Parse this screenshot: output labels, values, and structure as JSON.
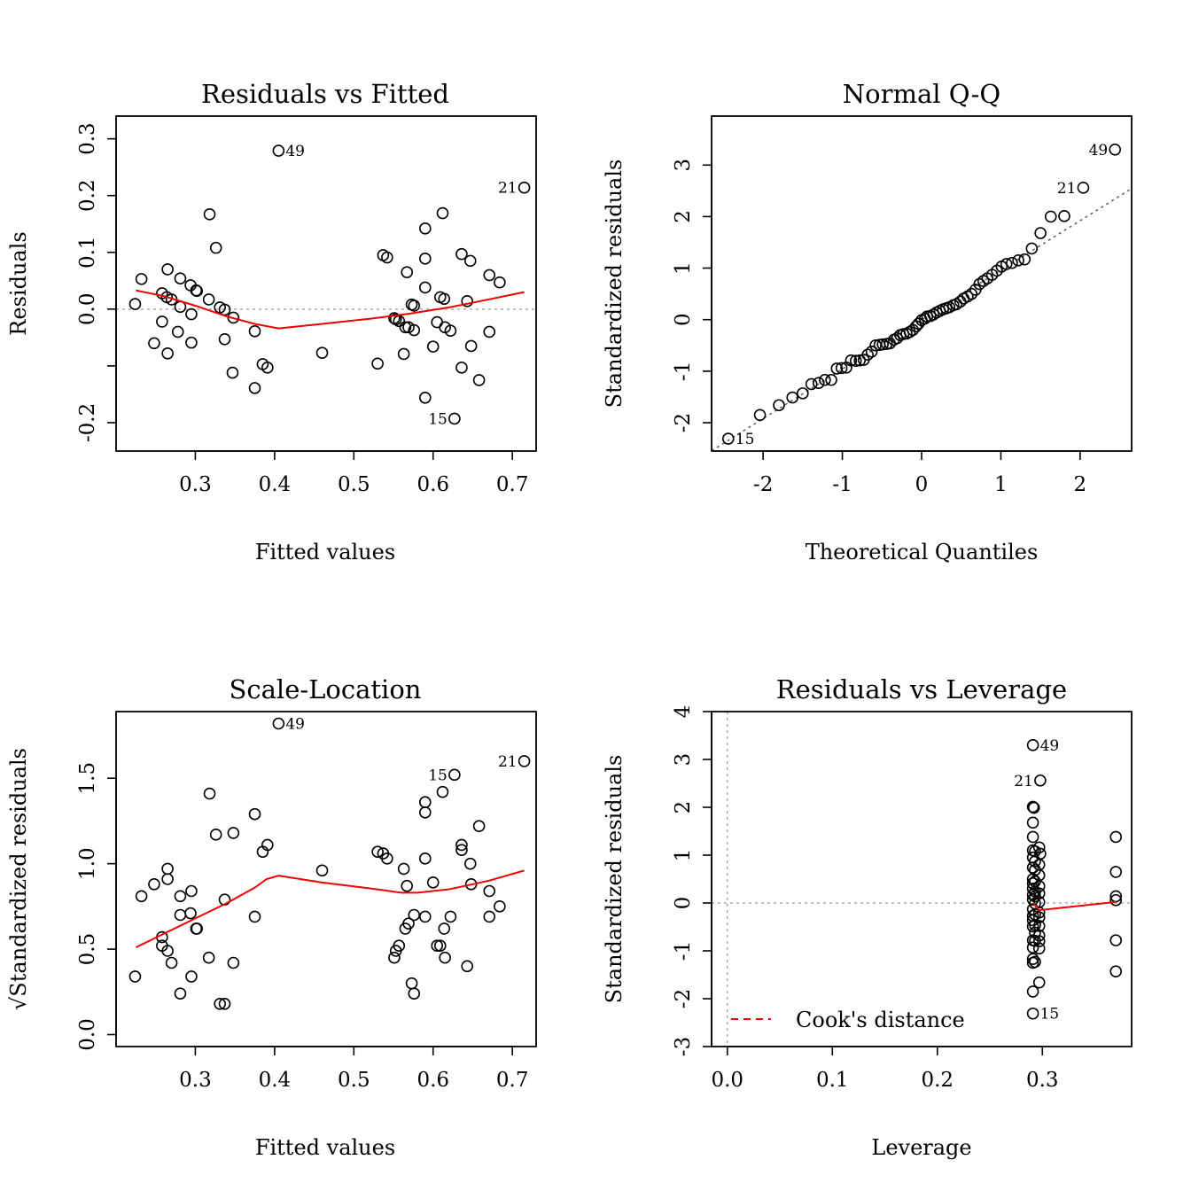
{
  "chart_data": [
    {
      "type": "scatter",
      "title": "Residuals vs Fitted",
      "xlabel": "Fitted values",
      "ylabel": "Residuals",
      "xlim": [
        0.2,
        0.73
      ],
      "ylim": [
        -0.25,
        0.34
      ],
      "xticks": [
        "0.3",
        "0.4",
        "0.5",
        "0.6",
        "0.7"
      ],
      "yticks": [
        "-0.2",
        "",
        "0.0",
        "0.1",
        "0.2",
        "0.3"
      ],
      "reference_line": {
        "y": 0,
        "color": "#aaaaaa",
        "style": "dotted"
      },
      "smoother_color": "#ee0000",
      "points": [
        [
          0.405,
          0.279
        ],
        [
          0.715,
          0.214
        ],
        [
          0.318,
          0.167
        ],
        [
          0.612,
          0.169
        ],
        [
          0.59,
          0.142
        ],
        [
          0.326,
          0.108
        ],
        [
          0.537,
          0.095
        ],
        [
          0.542,
          0.091
        ],
        [
          0.636,
          0.097
        ],
        [
          0.647,
          0.085
        ],
        [
          0.59,
          0.089
        ],
        [
          0.265,
          0.07
        ],
        [
          0.567,
          0.065
        ],
        [
          0.671,
          0.06
        ],
        [
          0.684,
          0.047
        ],
        [
          0.232,
          0.053
        ],
        [
          0.281,
          0.054
        ],
        [
          0.294,
          0.042
        ],
        [
          0.301,
          0.033
        ],
        [
          0.302,
          0.032
        ],
        [
          0.59,
          0.038
        ],
        [
          0.258,
          0.028
        ],
        [
          0.264,
          0.021
        ],
        [
          0.27,
          0.017
        ],
        [
          0.317,
          0.017
        ],
        [
          0.609,
          0.021
        ],
        [
          0.614,
          0.018
        ],
        [
          0.643,
          0.014
        ],
        [
          0.224,
          0.009
        ],
        [
          0.281,
          0.004
        ],
        [
          0.331,
          0.003
        ],
        [
          0.337,
          -0.001
        ],
        [
          0.573,
          0.008
        ],
        [
          0.576,
          0.006
        ],
        [
          0.295,
          -0.009
        ],
        [
          0.348,
          -0.015
        ],
        [
          0.551,
          -0.016
        ],
        [
          0.553,
          -0.018
        ],
        [
          0.557,
          -0.021
        ],
        [
          0.258,
          -0.022
        ],
        [
          0.605,
          -0.023
        ],
        [
          0.565,
          -0.032
        ],
        [
          0.569,
          -0.032
        ],
        [
          0.576,
          -0.037
        ],
        [
          0.615,
          -0.032
        ],
        [
          0.622,
          -0.038
        ],
        [
          0.278,
          -0.04
        ],
        [
          0.375,
          -0.039
        ],
        [
          0.671,
          -0.04
        ],
        [
          0.248,
          -0.06
        ],
        [
          0.295,
          -0.059
        ],
        [
          0.337,
          -0.053
        ],
        [
          0.6,
          -0.066
        ],
        [
          0.648,
          -0.065
        ],
        [
          0.265,
          -0.078
        ],
        [
          0.46,
          -0.077
        ],
        [
          0.563,
          -0.079
        ],
        [
          0.385,
          -0.097
        ],
        [
          0.391,
          -0.103
        ],
        [
          0.53,
          -0.096
        ],
        [
          0.636,
          -0.103
        ],
        [
          0.347,
          -0.112
        ],
        [
          0.658,
          -0.125
        ],
        [
          0.375,
          -0.139
        ],
        [
          0.59,
          -0.156
        ],
        [
          0.627,
          -0.193
        ]
      ],
      "smoother": [
        [
          0.225,
          0.033
        ],
        [
          0.26,
          0.023
        ],
        [
          0.3,
          0.006
        ],
        [
          0.34,
          -0.013
        ],
        [
          0.375,
          -0.026
        ],
        [
          0.405,
          -0.034
        ],
        [
          0.46,
          -0.026
        ],
        [
          0.52,
          -0.017
        ],
        [
          0.57,
          -0.008
        ],
        [
          0.62,
          0.003
        ],
        [
          0.67,
          0.017
        ],
        [
          0.715,
          0.03
        ]
      ],
      "labeled": [
        {
          "text": "49",
          "x": 0.405,
          "y": 0.279,
          "side": "right"
        },
        {
          "text": "21",
          "x": 0.715,
          "y": 0.214,
          "side": "left"
        },
        {
          "text": "15",
          "x": 0.627,
          "y": -0.193,
          "side": "left"
        }
      ]
    },
    {
      "type": "scatter",
      "title": "Normal Q-Q",
      "xlabel": "Theoretical Quantiles",
      "ylabel": "Standardized residuals",
      "xlim": [
        -2.65,
        2.65
      ],
      "ylim": [
        -2.55,
        3.95
      ],
      "xticks": [
        "-2",
        "-1",
        "0",
        "1",
        "2"
      ],
      "yticks": [
        "-2",
        "-1",
        "0",
        "1",
        "2",
        "3"
      ],
      "qq_line": {
        "slope": 0.96,
        "intercept": 0.0,
        "color": "#666666",
        "style": "dotted"
      },
      "points": [
        [
          -2.44,
          -2.31
        ],
        [
          -2.04,
          -1.85
        ],
        [
          -1.8,
          -1.66
        ],
        [
          -1.63,
          -1.51
        ],
        [
          -1.5,
          -1.43
        ],
        [
          -1.39,
          -1.25
        ],
        [
          -1.3,
          -1.23
        ],
        [
          -1.22,
          -1.17
        ],
        [
          -1.14,
          -1.17
        ],
        [
          -1.07,
          -0.95
        ],
        [
          -1.01,
          -0.94
        ],
        [
          -0.95,
          -0.93
        ],
        [
          -0.89,
          -0.79
        ],
        [
          -0.83,
          -0.8
        ],
        [
          -0.78,
          -0.79
        ],
        [
          -0.73,
          -0.78
        ],
        [
          -0.68,
          -0.68
        ],
        [
          -0.63,
          -0.62
        ],
        [
          -0.58,
          -0.5
        ],
        [
          -0.53,
          -0.49
        ],
        [
          -0.49,
          -0.48
        ],
        [
          -0.44,
          -0.47
        ],
        [
          -0.4,
          -0.46
        ],
        [
          -0.35,
          -0.39
        ],
        [
          -0.31,
          -0.36
        ],
        [
          -0.27,
          -0.3
        ],
        [
          -0.23,
          -0.28
        ],
        [
          -0.19,
          -0.27
        ],
        [
          -0.15,
          -0.24
        ],
        [
          -0.11,
          -0.2
        ],
        [
          -0.07,
          -0.13
        ],
        [
          -0.04,
          -0.08
        ],
        [
          0.0,
          -0.01
        ],
        [
          0.04,
          0.02
        ],
        [
          0.07,
          0.06
        ],
        [
          0.11,
          0.07
        ],
        [
          0.15,
          0.1
        ],
        [
          0.19,
          0.14
        ],
        [
          0.23,
          0.17
        ],
        [
          0.27,
          0.2
        ],
        [
          0.31,
          0.22
        ],
        [
          0.35,
          0.24
        ],
        [
          0.4,
          0.28
        ],
        [
          0.44,
          0.3
        ],
        [
          0.49,
          0.35
        ],
        [
          0.53,
          0.41
        ],
        [
          0.58,
          0.45
        ],
        [
          0.63,
          0.5
        ],
        [
          0.68,
          0.58
        ],
        [
          0.73,
          0.69
        ],
        [
          0.78,
          0.75
        ],
        [
          0.83,
          0.8
        ],
        [
          0.89,
          0.87
        ],
        [
          0.95,
          0.95
        ],
        [
          1.01,
          1.03
        ],
        [
          1.07,
          1.08
        ],
        [
          1.14,
          1.1
        ],
        [
          1.22,
          1.15
        ],
        [
          1.3,
          1.17
        ],
        [
          1.39,
          1.38
        ],
        [
          1.5,
          1.68
        ],
        [
          1.63,
          2.0
        ],
        [
          1.8,
          2.01
        ],
        [
          2.04,
          2.56
        ],
        [
          2.44,
          3.3
        ]
      ],
      "labeled": [
        {
          "text": "49",
          "x": 2.44,
          "y": 3.3,
          "side": "left"
        },
        {
          "text": "21",
          "x": 2.04,
          "y": 2.56,
          "side": "left"
        },
        {
          "text": "15",
          "x": -2.44,
          "y": -2.31,
          "side": "right"
        }
      ]
    },
    {
      "type": "scatter",
      "title": "Scale-Location",
      "xlabel": "Fitted values",
      "ylabel": "Standardized residuals",
      "ylabel_prefix": "√",
      "xlim": [
        0.2,
        0.73
      ],
      "ylim": [
        -0.07,
        1.89
      ],
      "xticks": [
        "0.3",
        "0.4",
        "0.5",
        "0.6",
        "0.7"
      ],
      "yticks": [
        "0.0",
        "0.5",
        "1.0",
        "1.5"
      ],
      "smoother_color": "#ee0000",
      "points": [
        [
          0.405,
          1.82
        ],
        [
          0.715,
          1.6
        ],
        [
          0.627,
          1.52
        ],
        [
          0.612,
          1.42
        ],
        [
          0.318,
          1.41
        ],
        [
          0.59,
          1.36
        ],
        [
          0.59,
          1.3
        ],
        [
          0.375,
          1.29
        ],
        [
          0.658,
          1.22
        ],
        [
          0.326,
          1.17
        ],
        [
          0.348,
          1.18
        ],
        [
          0.391,
          1.11
        ],
        [
          0.636,
          1.11
        ],
        [
          0.385,
          1.07
        ],
        [
          0.53,
          1.07
        ],
        [
          0.537,
          1.06
        ],
        [
          0.542,
          1.03
        ],
        [
          0.59,
          1.03
        ],
        [
          0.636,
          1.08
        ],
        [
          0.647,
          1.0
        ],
        [
          0.265,
          0.97
        ],
        [
          0.46,
          0.96
        ],
        [
          0.563,
          0.97
        ],
        [
          0.265,
          0.91
        ],
        [
          0.248,
          0.88
        ],
        [
          0.6,
          0.89
        ],
        [
          0.648,
          0.88
        ],
        [
          0.567,
          0.87
        ],
        [
          0.295,
          0.84
        ],
        [
          0.671,
          0.84
        ],
        [
          0.232,
          0.81
        ],
        [
          0.281,
          0.81
        ],
        [
          0.337,
          0.79
        ],
        [
          0.684,
          0.75
        ],
        [
          0.281,
          0.7
        ],
        [
          0.294,
          0.71
        ],
        [
          0.375,
          0.69
        ],
        [
          0.576,
          0.7
        ],
        [
          0.59,
          0.69
        ],
        [
          0.622,
          0.69
        ],
        [
          0.671,
          0.69
        ],
        [
          0.301,
          0.62
        ],
        [
          0.302,
          0.62
        ],
        [
          0.569,
          0.65
        ],
        [
          0.565,
          0.62
        ],
        [
          0.614,
          0.62
        ],
        [
          0.258,
          0.57
        ],
        [
          0.258,
          0.52
        ],
        [
          0.265,
          0.49
        ],
        [
          0.557,
          0.52
        ],
        [
          0.553,
          0.49
        ],
        [
          0.551,
          0.45
        ],
        [
          0.605,
          0.52
        ],
        [
          0.609,
          0.52
        ],
        [
          0.615,
          0.45
        ],
        [
          0.317,
          0.45
        ],
        [
          0.348,
          0.42
        ],
        [
          0.27,
          0.42
        ],
        [
          0.643,
          0.4
        ],
        [
          0.224,
          0.34
        ],
        [
          0.295,
          0.34
        ],
        [
          0.573,
          0.3
        ],
        [
          0.576,
          0.24
        ],
        [
          0.281,
          0.24
        ],
        [
          0.331,
          0.18
        ],
        [
          0.337,
          0.18
        ]
      ],
      "smoother": [
        [
          0.225,
          0.51
        ],
        [
          0.26,
          0.59
        ],
        [
          0.3,
          0.68
        ],
        [
          0.34,
          0.77
        ],
        [
          0.375,
          0.86
        ],
        [
          0.39,
          0.91
        ],
        [
          0.405,
          0.93
        ],
        [
          0.46,
          0.89
        ],
        [
          0.53,
          0.85
        ],
        [
          0.56,
          0.83
        ],
        [
          0.58,
          0.83
        ],
        [
          0.62,
          0.85
        ],
        [
          0.67,
          0.9
        ],
        [
          0.715,
          0.96
        ]
      ],
      "labeled": [
        {
          "text": "49",
          "x": 0.405,
          "y": 1.82,
          "side": "right"
        },
        {
          "text": "21",
          "x": 0.715,
          "y": 1.6,
          "side": "left"
        },
        {
          "text": "15",
          "x": 0.627,
          "y": 1.52,
          "side": "left"
        }
      ]
    },
    {
      "type": "scatter",
      "title": "Residuals vs Leverage",
      "xlabel": "Leverage",
      "ylabel": "Standardized residuals",
      "xlim": [
        -0.015,
        0.385
      ],
      "ylim": [
        -3.0,
        4.0
      ],
      "xticks": [
        "0.0",
        "0.1",
        "0.2",
        "0.3"
      ],
      "yticks": [
        "-3",
        "-2",
        "-1",
        "0",
        "1",
        "2",
        "3",
        "4"
      ],
      "reference_lines": [
        {
          "y": 0,
          "color": "#aaaaaa",
          "style": "dotted"
        },
        {
          "x": 0,
          "color": "#aaaaaa",
          "style": "dotted"
        }
      ],
      "smoother_color": "#ee0000",
      "legend": {
        "label": "Cook's distance",
        "color": "#ee0000",
        "style": "dashed",
        "placement": "bottom-left"
      },
      "points": [
        [
          0.291,
          3.3
        ],
        [
          0.298,
          2.56
        ],
        [
          0.291,
          2.01
        ],
        [
          0.292,
          1.99
        ],
        [
          0.291,
          1.68
        ],
        [
          0.291,
          1.38
        ],
        [
          0.291,
          1.1
        ],
        [
          0.293,
          1.08
        ],
        [
          0.297,
          1.16
        ],
        [
          0.298,
          1.03
        ],
        [
          0.291,
          0.95
        ],
        [
          0.293,
          0.87
        ],
        [
          0.297,
          0.8
        ],
        [
          0.291,
          0.74
        ],
        [
          0.293,
          0.69
        ],
        [
          0.297,
          0.58
        ],
        [
          0.291,
          0.5
        ],
        [
          0.293,
          0.45
        ],
        [
          0.291,
          0.41
        ],
        [
          0.297,
          0.35
        ],
        [
          0.291,
          0.3
        ],
        [
          0.293,
          0.24
        ],
        [
          0.297,
          0.2
        ],
        [
          0.291,
          0.17
        ],
        [
          0.293,
          0.14
        ],
        [
          0.291,
          0.07
        ],
        [
          0.297,
          0.02
        ],
        [
          0.293,
          -0.01
        ],
        [
          0.291,
          -0.13
        ],
        [
          0.297,
          -0.2
        ],
        [
          0.293,
          -0.24
        ],
        [
          0.291,
          -0.27
        ],
        [
          0.297,
          -0.3
        ],
        [
          0.291,
          -0.36
        ],
        [
          0.293,
          -0.46
        ],
        [
          0.297,
          -0.48
        ],
        [
          0.291,
          -0.49
        ],
        [
          0.293,
          -0.62
        ],
        [
          0.297,
          -0.68
        ],
        [
          0.291,
          -0.78
        ],
        [
          0.293,
          -0.79
        ],
        [
          0.297,
          -0.8
        ],
        [
          0.291,
          -0.93
        ],
        [
          0.297,
          -0.95
        ],
        [
          0.291,
          -1.17
        ],
        [
          0.293,
          -1.23
        ],
        [
          0.291,
          -1.25
        ],
        [
          0.297,
          -1.66
        ],
        [
          0.291,
          -1.85
        ],
        [
          0.291,
          -2.31
        ],
        [
          0.37,
          1.38
        ],
        [
          0.37,
          0.65
        ],
        [
          0.37,
          0.14
        ],
        [
          0.37,
          0.06
        ],
        [
          0.37,
          -0.78
        ],
        [
          0.37,
          -1.43
        ]
      ],
      "smoother": [
        [
          0.291,
          0.0
        ],
        [
          0.297,
          -0.15
        ],
        [
          0.37,
          0.02
        ]
      ],
      "labeled": [
        {
          "text": "49",
          "x": 0.291,
          "y": 3.3,
          "side": "right"
        },
        {
          "text": "21",
          "x": 0.298,
          "y": 2.56,
          "side": "left"
        },
        {
          "text": "15",
          "x": 0.291,
          "y": -2.31,
          "side": "right"
        }
      ]
    }
  ]
}
